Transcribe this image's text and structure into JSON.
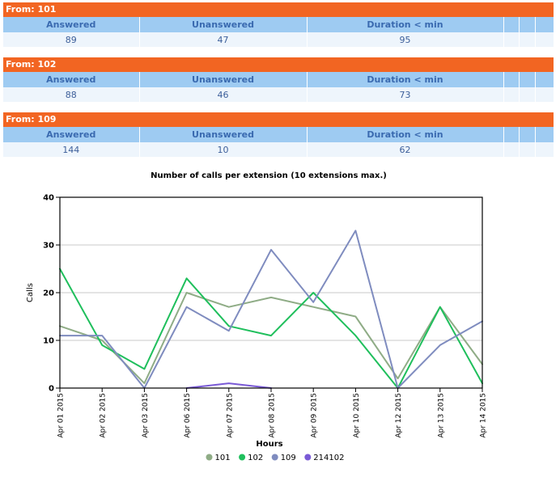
{
  "blocks": [
    {
      "from_label": "From: 101",
      "headers": [
        "Answered",
        "Unanswered",
        "Duration < min"
      ],
      "values": [
        "89",
        "47",
        "95"
      ]
    },
    {
      "from_label": "From: 102",
      "headers": [
        "Answered",
        "Unanswered",
        "Duration < min"
      ],
      "values": [
        "88",
        "46",
        "73"
      ]
    },
    {
      "from_label": "From: 109",
      "headers": [
        "Answered",
        "Unanswered",
        "Duration < min"
      ],
      "values": [
        "144",
        "10",
        "62"
      ]
    }
  ],
  "colors": {
    "from_bar": "#f26522",
    "header_bg": "#9ecbf2",
    "header_text": "#3a6ab0",
    "cell_bg": "#eef5fc",
    "cell_text": "#3d5f9a"
  },
  "chart_data": {
    "type": "line",
    "title": "Number of calls per extension (10 extensions max.)",
    "xlabel": "Hours",
    "ylabel": "Calls",
    "categories": [
      "Apr 01 2015",
      "Apr 02 2015",
      "Apr 03 2015",
      "Apr 06 2015",
      "Apr 07 2015",
      "Apr 08 2015",
      "Apr 09 2015",
      "Apr 10 2015",
      "Apr 12 2015",
      "Apr 13 2015",
      "Apr 14 2015"
    ],
    "ylim": [
      0,
      40
    ],
    "yticks": [
      0,
      10,
      20,
      30,
      40
    ],
    "grid": true,
    "legend_position": "bottom",
    "series": [
      {
        "name": "101",
        "color": "#8fac86",
        "values": [
          13,
          10,
          1,
          20,
          17,
          19,
          17,
          15,
          2,
          17,
          5
        ]
      },
      {
        "name": "102",
        "color": "#1fbf5c",
        "values": [
          25,
          9,
          4,
          23,
          13,
          11,
          20,
          11,
          0,
          17,
          1
        ]
      },
      {
        "name": "109",
        "color": "#7f8cbf",
        "values": [
          11,
          11,
          0,
          17,
          12,
          29,
          18,
          33,
          0,
          9,
          14
        ]
      },
      {
        "name": "214102",
        "color": "#7a5ad6",
        "values": [
          null,
          null,
          null,
          0,
          1,
          0,
          null,
          null,
          null,
          null,
          null
        ]
      }
    ]
  }
}
